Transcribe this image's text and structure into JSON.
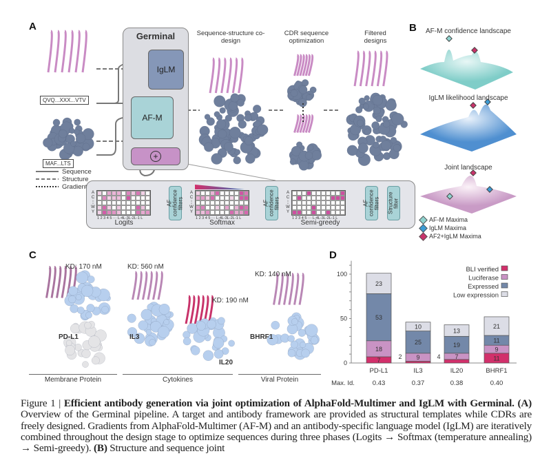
{
  "panelA": {
    "label": "A",
    "germinal_title": "Germinal",
    "iglm": "IgLM",
    "afm": "AF-M",
    "plus": "+",
    "antibody_seq": "QVQ...XXX...VTV",
    "target_seq": "MAF...LTS",
    "legend": [
      "Sequence",
      "Structure",
      "Gradient"
    ],
    "stage_titles": [
      "Sequence-structure co-design",
      "CDR sequence optimization",
      "Filtered designs"
    ],
    "phases": [
      "Logits",
      "Softmax",
      "Semi-greedy"
    ],
    "filter_label": "AF confidence filters",
    "structure_filter": "Structure filter",
    "row_labels": [
      "A",
      "C",
      "⋮",
      "W",
      "Y"
    ],
    "col_labels": "1  2  3  4  5  ··· L-4L-3L-2L-1 L"
  },
  "panelB": {
    "label": "B",
    "titles": [
      "AF-M confidence landscape",
      "IgLM likelihood landscape",
      "Joint landscape"
    ],
    "legend": [
      {
        "label": "AF-M Maxima",
        "color": "#8fd3cf"
      },
      {
        "label": "IgLM Maxima",
        "color": "#3b9bd4"
      },
      {
        "label": "AF2+IgLM Maxima",
        "color": "#c8336a"
      }
    ]
  },
  "panelC": {
    "label": "C",
    "kd": [
      "KD: 170 nM",
      "KD: 560 nM",
      "KD: 190 nM",
      "KD: 140 nM"
    ],
    "targets": [
      "PD-L1",
      "IL3",
      "IL20",
      "BHRF1"
    ],
    "groups": [
      "Membrane Protein",
      "Cytokines",
      "Viral Protein"
    ]
  },
  "chart_data": {
    "type": "bar",
    "stacked": true,
    "label": "D",
    "categories": [
      "PD-L1",
      "IL3",
      "IL20",
      "BHRF1"
    ],
    "series": [
      {
        "name": "BLI verified",
        "color": "#d2306b",
        "values": [
          7,
          2,
          4,
          11
        ]
      },
      {
        "name": "Luciferase",
        "color": "#c993c4",
        "values": [
          18,
          9,
          7,
          9
        ]
      },
      {
        "name": "Expressed",
        "color": "#7388a9",
        "values": [
          53,
          25,
          19,
          11
        ]
      },
      {
        "name": "Low expression",
        "color": "#dcdde6",
        "values": [
          23,
          10,
          13,
          21
        ]
      }
    ],
    "yticks": [
      0,
      50,
      100
    ],
    "ylim": [
      0,
      115
    ],
    "row_label": "Max. Id.",
    "max_id": [
      "0.43",
      "0.37",
      "0.38",
      "0.40"
    ]
  },
  "caption": {
    "fig": "Figure 1 | ",
    "title": "Efficient antibody generation via joint optimization of AlphaFold-Multimer and IgLM with Germinal.",
    "a": "(A)",
    "text1": " Overview of the Germinal pipeline. A target and antibody framework are provided as structural templates while CDRs are freely designed. Gradients from AlphaFold-Multimer (AF-M) and an antibody-specific language model (IgLM) are iteratively combined throughout the design stage to optimize sequences during three phases (Logits → Softmax (temperature annealing) → Semi-greedy). ",
    "b": "(B)",
    "text2": " Structure and sequence joint"
  }
}
